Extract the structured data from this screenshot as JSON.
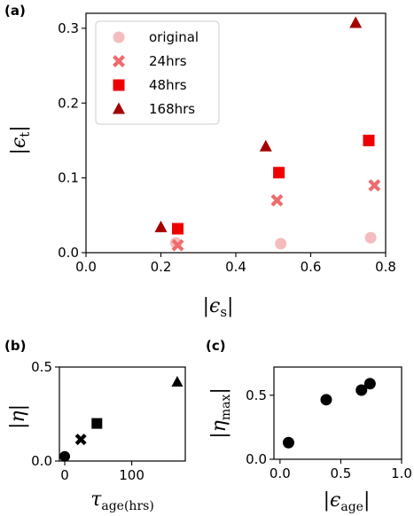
{
  "chart_data": [
    {
      "panel": "(a)",
      "type": "scatter",
      "xlim": [
        0.0,
        0.8
      ],
      "ylim": [
        0.0,
        0.32
      ],
      "xticks": [
        "0.0",
        "0.2",
        "0.4",
        "0.6",
        "0.8"
      ],
      "yticks": [
        "0.0",
        "0.1",
        "0.2",
        "0.3"
      ],
      "xlabel": {
        "bar": "|",
        "sym": "ϵ",
        "sub": "s"
      },
      "ylabel": {
        "bar": "|",
        "sym": "ϵ",
        "sub": "t"
      },
      "legend_position": "top-left",
      "grid": false,
      "series": [
        {
          "name": "original",
          "marker": "circle",
          "color": "#f4bcbc",
          "x": [
            0.24,
            0.52,
            0.76
          ],
          "y": [
            0.013,
            0.012,
            0.02
          ]
        },
        {
          "name": "24hrs",
          "marker": "x",
          "color": "#ef6b6b",
          "x": [
            0.245,
            0.51,
            0.77
          ],
          "y": [
            0.01,
            0.07,
            0.09
          ]
        },
        {
          "name": "48hrs",
          "marker": "square",
          "color": "#ef0000",
          "x": [
            0.245,
            0.515,
            0.755
          ],
          "y": [
            0.032,
            0.107,
            0.15
          ]
        },
        {
          "name": "168hrs",
          "marker": "triangle",
          "color": "#a50000",
          "x": [
            0.2,
            0.48,
            0.72
          ],
          "y": [
            0.034,
            0.142,
            0.307
          ]
        }
      ]
    },
    {
      "panel": "(b)",
      "type": "scatter",
      "xlim": [
        -8,
        180
      ],
      "ylim": [
        0.0,
        0.5
      ],
      "xticks": [
        "0",
        "100"
      ],
      "yticks": [
        "0.0",
        "0.5"
      ],
      "xlabel": {
        "sym": "τ",
        "sub": "age(hrs)"
      },
      "ylabel": {
        "bar": "|",
        "sym": "η"
      },
      "grid": false,
      "points": [
        {
          "x": 0,
          "y": 0.025,
          "marker": "circle",
          "color": "#000000"
        },
        {
          "x": 24,
          "y": 0.115,
          "marker": "x",
          "color": "#000000"
        },
        {
          "x": 48,
          "y": 0.2,
          "marker": "square",
          "color": "#000000"
        },
        {
          "x": 168,
          "y": 0.42,
          "marker": "triangle",
          "color": "#000000"
        }
      ]
    },
    {
      "panel": "(c)",
      "type": "scatter",
      "xlim": [
        -0.05,
        1.0
      ],
      "ylim": [
        0.0,
        0.72
      ],
      "xticks": [
        "0.0",
        "0.5",
        "1.0"
      ],
      "yticks": [
        "0.0",
        "0.5"
      ],
      "xlabel": {
        "bar": "|",
        "sym": "ϵ",
        "sub": "age"
      },
      "ylabel": {
        "bar": "|",
        "sym": "η",
        "sub": "max"
      },
      "grid": false,
      "points": [
        {
          "x": 0.07,
          "y": 0.13,
          "marker": "circle",
          "color": "#000000"
        },
        {
          "x": 0.38,
          "y": 0.465,
          "marker": "circle",
          "color": "#000000"
        },
        {
          "x": 0.67,
          "y": 0.54,
          "marker": "circle",
          "color": "#000000"
        },
        {
          "x": 0.74,
          "y": 0.59,
          "marker": "circle",
          "color": "#000000"
        }
      ]
    }
  ]
}
